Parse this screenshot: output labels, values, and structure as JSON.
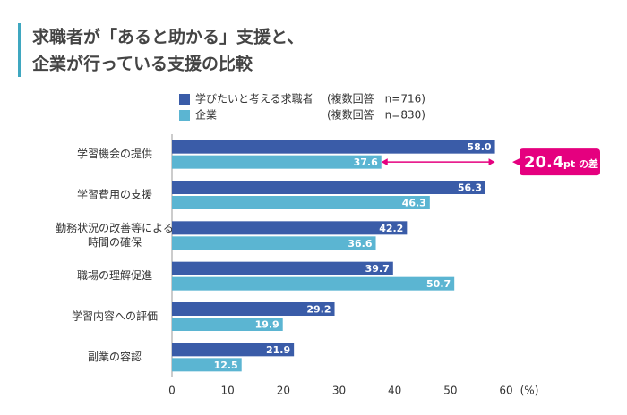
{
  "chart_data": {
    "type": "hbar",
    "title_lines": [
      "求職者が「あると助かる」支援と、",
      "企業が行っている支援の比較"
    ],
    "categories": [
      "学習機会の提供",
      "学習費用の支援",
      [
        "勤務状況の改善等による",
        "時間の確保"
      ],
      "職場の理解促進",
      "学習内容への評価",
      "副業の容認"
    ],
    "series": [
      {
        "name": "学びたいと考える求職者",
        "note": "(複数回答　n=716)",
        "color": "#3a5ca8",
        "values": [
          58.0,
          56.3,
          42.2,
          39.7,
          29.2,
          21.9
        ],
        "value_labels": [
          "58.0",
          "56.3",
          "42.2",
          "39.7",
          "29.2",
          "21.9"
        ]
      },
      {
        "name": "企業",
        "note": "(複数回答　n=830)",
        "color": "#5bb5d2",
        "values": [
          37.6,
          46.3,
          36.6,
          50.7,
          19.9,
          12.5
        ],
        "value_labels": [
          "37.6",
          "46.3",
          "36.6",
          "50.7",
          "19.9",
          "12.5"
        ]
      }
    ],
    "xlim": [
      0,
      60
    ],
    "xticks": [
      0,
      10,
      20,
      30,
      40,
      50,
      60
    ],
    "x_unit": "(%)",
    "grid": false,
    "annotation": {
      "value": 20.4,
      "unit": "pt の差",
      "color": "#e5007f"
    }
  }
}
